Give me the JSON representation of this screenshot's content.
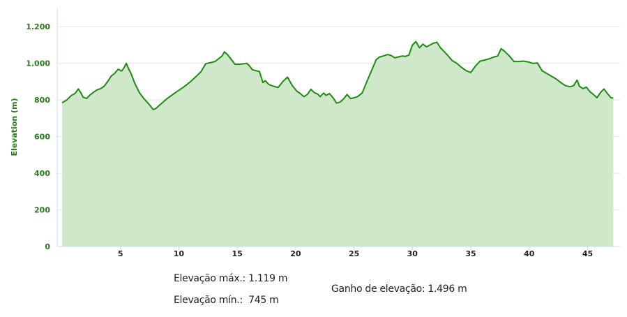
{
  "chart_data": {
    "type": "area",
    "title": "",
    "xlabel": "",
    "ylabel": "Elevation (m)",
    "xlim": [
      0,
      47.3
    ],
    "ylim": [
      0,
      1300
    ],
    "x_ticks": [
      5,
      10,
      15,
      20,
      25,
      30,
      35,
      40,
      45
    ],
    "x_tick_labels": [
      "5",
      "10",
      "15",
      "20",
      "25",
      "30",
      "35",
      "40",
      "45"
    ],
    "y_ticks": [
      0,
      200,
      400,
      600,
      800,
      1000,
      1200
    ],
    "y_tick_labels": [
      "0",
      "200",
      "400",
      "600",
      "800",
      "1.000",
      "1.200"
    ],
    "grid": true,
    "colors": {
      "line": "#1f8a12",
      "fill": "#cfe8c9",
      "grid": "#e4e4e4",
      "axis": "#c7dcef"
    },
    "series": [
      {
        "x": [
          0,
          0.4,
          0.8,
          1.1,
          1.4,
          1.6,
          1.8,
          2.1,
          2.4,
          2.7,
          3.0,
          3.3,
          3.6,
          3.9,
          4.2,
          4.5,
          4.8,
          5.1,
          5.3,
          5.5,
          5.7,
          5.9,
          6.2,
          6.6,
          7.0,
          7.4,
          7.8,
          8.0,
          8.4,
          9.0,
          9.7,
          10.4,
          11.0,
          11.5,
          11.9,
          12.3,
          12.8,
          13.1,
          13.4,
          13.7,
          13.9,
          14.2,
          14.5,
          14.8,
          15.2,
          15.6,
          15.8,
          16.0,
          16.3,
          16.6,
          16.9,
          17.2,
          17.4,
          17.7,
          18.1,
          18.5,
          18.9,
          19.3,
          19.7,
          20.1,
          20.4,
          20.7,
          21.0,
          21.3,
          21.6,
          21.9,
          22.1,
          22.4,
          22.6,
          22.9,
          23.2,
          23.5,
          23.8,
          24.1,
          24.4,
          24.7,
          25.0,
          25.3,
          25.7,
          26.1,
          26.5,
          26.9,
          27.2,
          27.5,
          27.9,
          28.2,
          28.5,
          28.8,
          29.1,
          29.4,
          29.7,
          30.0,
          30.3,
          30.6,
          30.9,
          31.2,
          31.5,
          31.8,
          32.1,
          32.4,
          32.7,
          33.0,
          33.4,
          33.8,
          34.2,
          34.6,
          35.0,
          35.4,
          35.8,
          36.2,
          36.6,
          37.0,
          37.3,
          37.6,
          37.9,
          38.3,
          38.7,
          39.1,
          39.5,
          39.9,
          40.3,
          40.7,
          41.1,
          41.5,
          41.9,
          42.3,
          42.7,
          43.1,
          43.5,
          43.8,
          44.1,
          44.3,
          44.6,
          44.9,
          45.2,
          45.5,
          45.8,
          46.1,
          46.4,
          46.7,
          47.0,
          47.2
        ],
        "y": [
          785,
          800,
          825,
          835,
          860,
          840,
          815,
          808,
          828,
          842,
          855,
          862,
          875,
          900,
          930,
          945,
          968,
          958,
          975,
          1000,
          970,
          945,
          895,
          842,
          808,
          780,
          748,
          752,
          775,
          808,
          840,
          870,
          900,
          930,
          955,
          998,
          1005,
          1010,
          1025,
          1040,
          1063,
          1045,
          1020,
          995,
          995,
          998,
          1000,
          990,
          965,
          960,
          955,
          895,
          905,
          885,
          875,
          868,
          900,
          925,
          880,
          848,
          835,
          818,
          830,
          858,
          840,
          832,
          818,
          838,
          825,
          835,
          812,
          783,
          788,
          805,
          830,
          808,
          812,
          818,
          838,
          900,
          960,
          1020,
          1035,
          1040,
          1048,
          1042,
          1030,
          1035,
          1040,
          1038,
          1045,
          1100,
          1119,
          1085,
          1105,
          1090,
          1100,
          1110,
          1115,
          1085,
          1065,
          1045,
          1015,
          1000,
          978,
          960,
          950,
          985,
          1012,
          1018,
          1025,
          1035,
          1040,
          1080,
          1065,
          1040,
          1010,
          1010,
          1012,
          1008,
          1000,
          1002,
          960,
          945,
          930,
          915,
          895,
          878,
          872,
          878,
          908,
          875,
          862,
          870,
          845,
          830,
          812,
          840,
          860,
          835,
          812,
          810
        ]
      }
    ]
  },
  "stats": {
    "max_elevation": "Elevação máx.: 1.119 m",
    "min_elevation": "Elevação mín.:  745 m",
    "elevation_gain": "Ganho de elevação: 1.496 m"
  }
}
